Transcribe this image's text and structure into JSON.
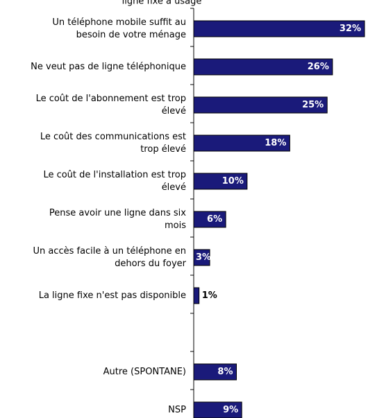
{
  "chart_data": {
    "type": "bar",
    "orientation": "horizontal",
    "title_fragment": "ligne fixe à usage",
    "categories": [
      [
        "Un téléphone mobile suffit au",
        "besoin de votre ménage"
      ],
      [
        "Ne veut pas de ligne téléphonique"
      ],
      [
        "Le coût de l'abonnement est trop",
        "élevé"
      ],
      [
        "Le coût des communications est",
        "trop élevé"
      ],
      [
        "Le coût de l'installation est trop",
        "élevé"
      ],
      [
        "Pense avoir une ligne dans six",
        "mois"
      ],
      [
        "Un accès facile à un téléphone en",
        "dehors du foyer"
      ],
      [
        "La ligne fixe n'est pas disponible"
      ],
      [
        ""
      ],
      [
        "Autre (SPONTANE)"
      ],
      [
        "NSP"
      ]
    ],
    "values": [
      32,
      26,
      25,
      18,
      10,
      6,
      3,
      1,
      null,
      8,
      9
    ],
    "value_labels": [
      "32%",
      "26%",
      "25%",
      "18%",
      "10%",
      "6%",
      "3%",
      "1%",
      "",
      "8%",
      "9%"
    ],
    "xlim": [
      0,
      32
    ],
    "grid": false,
    "legend": "none",
    "colors": {
      "bar": "#1a1a7a",
      "bar_stroke": "#000000",
      "label_inside": "#ffffff",
      "label_outside": "#000000",
      "axis": "#000000"
    }
  }
}
